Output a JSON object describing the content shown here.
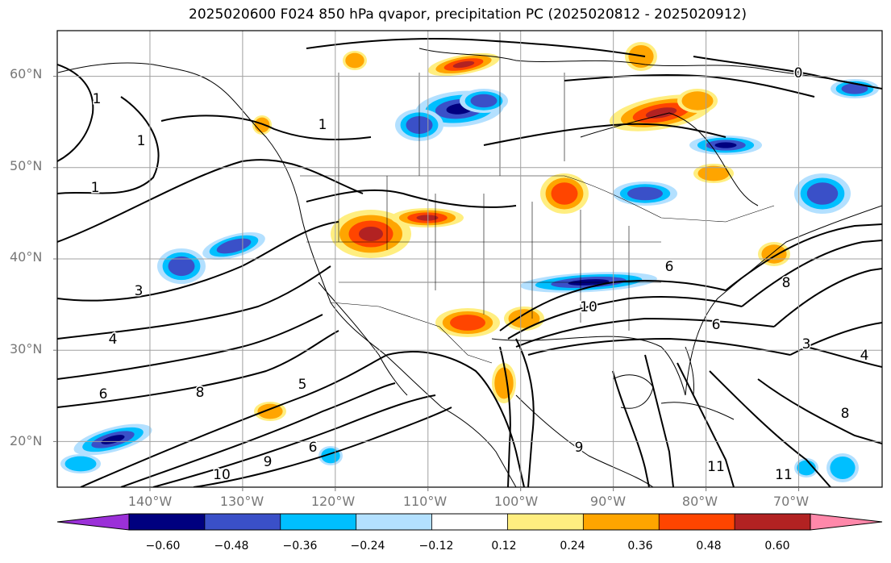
{
  "title": "2025020600 F024 850 hPa qvapor, precipitation PC (2025020812 - 2025020912)",
  "axes": {
    "lat_labels": [
      "60°N",
      "50°N",
      "40°N",
      "30°N",
      "20°N"
    ],
    "lon_labels": [
      "140°W",
      "130°W",
      "120°W",
      "110°W",
      "100°W",
      "90°W",
      "80°W",
      "70°W"
    ]
  },
  "contour_labels": [
    "1",
    "1",
    "1",
    "1",
    "3",
    "4",
    "6",
    "5",
    "8",
    "10",
    "9",
    "6",
    "8",
    "9",
    "10",
    "11",
    "11",
    "8",
    "6",
    "3",
    "4",
    "6",
    "0"
  ],
  "colorbar": {
    "ticks": [
      "−0.60",
      "−0.48",
      "−0.36",
      "−0.24",
      "−0.12",
      "0.12",
      "0.24",
      "0.36",
      "0.48",
      "0.60"
    ],
    "colors": [
      "#9b30d8",
      "#00007f",
      "#3a50c8",
      "#00bfff",
      "#b3e0ff",
      "#ffffff",
      "#ffee80",
      "#ffa500",
      "#ff4500",
      "#b22222",
      "#ff88aa"
    ]
  },
  "shading_colors": {
    "neg_light": "#b3e0ff",
    "neg_mid": "#00bfff",
    "neg_dark": "#3a50c8",
    "neg_darkest": "#00007f",
    "pos_light": "#ffee80",
    "pos_mid": "#ffa500",
    "pos_dark": "#ff4500",
    "pos_darkest": "#b22222"
  },
  "chart_data": {
    "type": "map",
    "projection": "cylindrical",
    "extent": {
      "lon": [
        -150,
        -61
      ],
      "lat": [
        15,
        65
      ]
    },
    "grid": true,
    "contour_variable": "850 hPa qvapor",
    "shaded_variable": "precipitation PC",
    "contour_labels_values": [
      1,
      1,
      1,
      1,
      3,
      4,
      6,
      5,
      8,
      10,
      9,
      6,
      8,
      9,
      10,
      11,
      11,
      8,
      6,
      3,
      4,
      6,
      0
    ],
    "colorbar_levels": [
      -0.6,
      -0.48,
      -0.36,
      -0.24,
      -0.12,
      0.12,
      0.24,
      0.36,
      0.48,
      0.6
    ]
  }
}
